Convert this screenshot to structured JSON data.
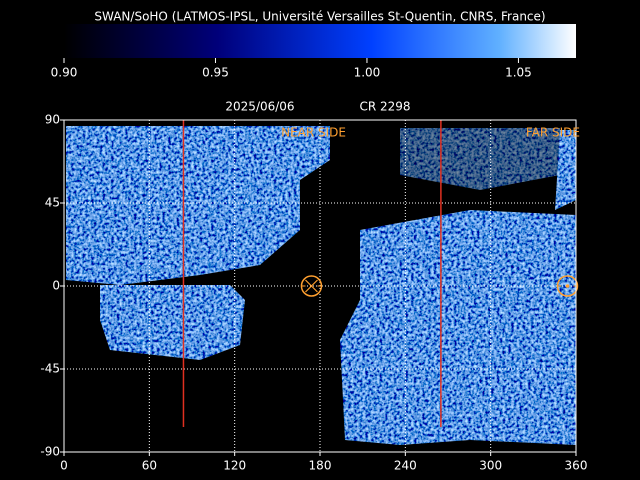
{
  "chart_data": {
    "type": "heatmap",
    "header": "SWAN/SoHO (LATMOS-IPSL, Université Versailles St-Quentin, CNRS, France)",
    "date": "2025/06/06",
    "rotation": "CR 2298",
    "annotations": [
      "NEAR SIDE",
      "FAR SIDE"
    ],
    "colorbar": {
      "lim": [
        0.9,
        1.069
      ],
      "ticks": [
        {
          "value": 0.9,
          "label": "0.90"
        },
        {
          "value": 0.95,
          "label": "0.95"
        },
        {
          "value": 1.0,
          "label": "1.00"
        },
        {
          "value": 1.05,
          "label": "1.05"
        }
      ]
    },
    "xlim": [
      0,
      360
    ],
    "ylim": [
      -90,
      90
    ],
    "xticks": [
      0,
      60,
      120,
      180,
      240,
      300,
      360
    ],
    "yticks": [
      90,
      45,
      0,
      -45,
      -90
    ],
    "grid": true,
    "meridians": [
      84,
      265
    ],
    "meridian_color": "#e03020",
    "markers": [
      {
        "x": 174,
        "y": 0
      },
      {
        "x": 354,
        "y": 0
      }
    ],
    "marker_color": "#ffa030"
  }
}
